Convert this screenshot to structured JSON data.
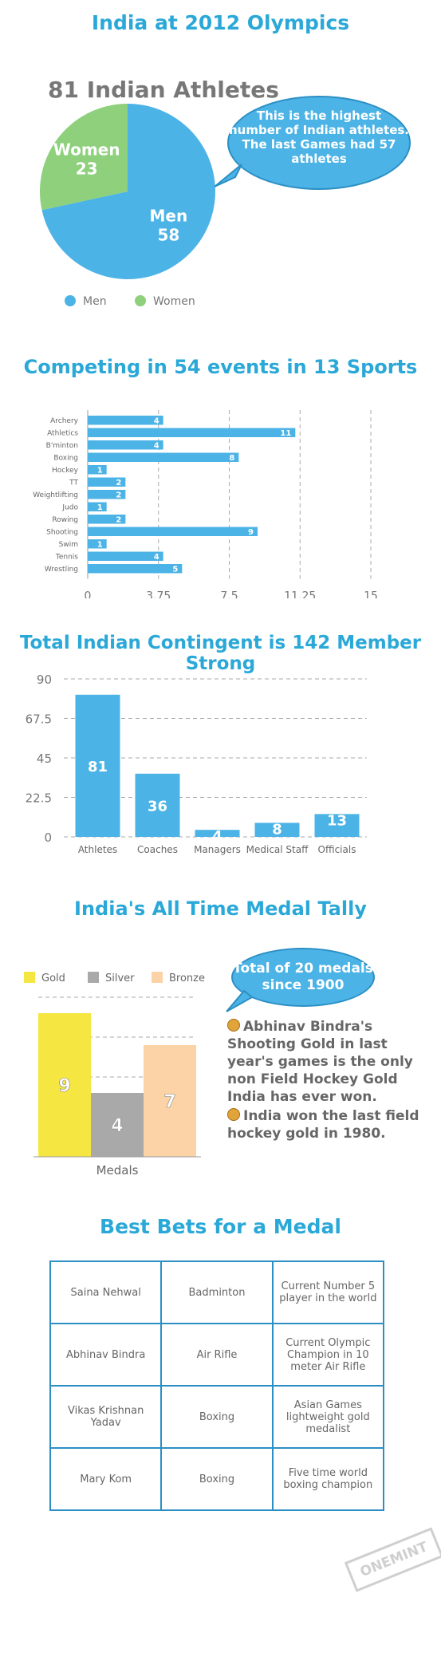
{
  "sections": {
    "s1_title": "India at 2012 Olympics",
    "s2_title": "Competing in 54 events in 13 Sports",
    "s3_title": "Total Indian Contingent is 142 Member Strong",
    "s4_title": "India's All Time Medal Tally",
    "s5_title": "Best Bets for a Medal"
  },
  "athletes": {
    "headline": "81 Indian Athletes",
    "bubble_lines": [
      "This is the highest",
      "number of Indian athletes.",
      "The last Games had 57",
      "athletes"
    ]
  },
  "medals": {
    "bubble_lines": [
      "Total of 20 medals",
      "since 1900"
    ],
    "fact1": "Abhinav Bindra's Shooting Gold in last year's games is the only non Field Hockey Gold India has ever won.",
    "fact2": "India won the last field hockey gold in 1980."
  },
  "best_bets": {
    "rows": [
      [
        "Saina Nehwal",
        "Badminton",
        "Current Number 5 player in the world"
      ],
      [
        "Abhinav Bindra",
        "Air Rifle",
        "Current Olympic Champion in 10 meter Air Rifle"
      ],
      [
        "Vikas Krishnan Yadav",
        "Boxing",
        "Asian Games lightweight gold medalist"
      ],
      [
        "Mary Kom",
        "Boxing",
        "Five time world boxing champion"
      ]
    ]
  },
  "watermark": "ONEMINT",
  "colors": {
    "title": "#2aa8d8",
    "bar": "#4cb3e6",
    "women": "#8ed07c",
    "gold": "#f5e642",
    "silver": "#a9a9a9",
    "bronze": "#fbd3a6"
  },
  "chart_data": [
    {
      "type": "pie",
      "categories": [
        "Men",
        "Women"
      ],
      "values": [
        58,
        23
      ],
      "labels": [
        "Men",
        "Women"
      ],
      "legend": [
        "Men",
        "Women"
      ],
      "legend_position": "bottom-left"
    },
    {
      "type": "bar",
      "orientation": "horizontal",
      "categories": [
        "Archery",
        "Athletics",
        "B'minton",
        "Boxing",
        "Hockey",
        "TT",
        "Weightlifting",
        "Judo",
        "Rowing",
        "Shooting",
        "Swim",
        "Tennis",
        "Wrestling"
      ],
      "values": [
        4,
        11,
        4,
        8,
        1,
        2,
        2,
        1,
        2,
        9,
        1,
        4,
        5
      ],
      "xlim": [
        0,
        15
      ],
      "xticks": [
        "0",
        "3.75",
        "7.5",
        "11.25",
        "15"
      ],
      "grid": true
    },
    {
      "type": "bar",
      "categories": [
        "Athletes",
        "Coaches",
        "Managers",
        "Medical Staff",
        "Officials"
      ],
      "values": [
        81,
        36,
        4,
        8,
        13
      ],
      "ylim": [
        0,
        90
      ],
      "yticks": [
        "0",
        "22.5",
        "45",
        "67.5",
        "90"
      ],
      "grid": true
    },
    {
      "type": "bar",
      "categories": [
        "Medals"
      ],
      "series": [
        {
          "name": "Gold",
          "values": [
            9
          ]
        },
        {
          "name": "Silver",
          "values": [
            4
          ]
        },
        {
          "name": "Bronze",
          "values": [
            7
          ]
        }
      ],
      "ylim": [
        0,
        10
      ],
      "legend_position": "top",
      "grid": true
    }
  ]
}
